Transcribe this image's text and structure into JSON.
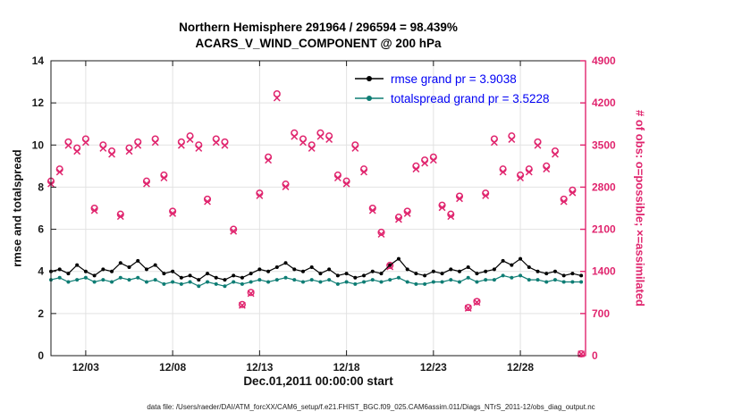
{
  "figure": {
    "title_line1": "Northern Hemisphere 291964 / 296594 = 98.439%",
    "title_line2": "ACARS_V_WIND_COMPONENT @ 200 hPa",
    "caption": "data file: /Users/raeder/DAI/ATM_forcXX/CAM6_setup/f.e21.FHIST_BGC.f09_025.CAM6assim.011/Diags_NTrS_2011-12/obs_diag_output.nc"
  },
  "legend": {
    "text_color": "#0000f5",
    "entries": [
      {
        "label": "rmse grand pr = 3.9038",
        "color": "#000000"
      },
      {
        "label": "totalspread grand pr = 3.5228",
        "color": "#0e7d74"
      }
    ]
  },
  "chart_data": {
    "type": "line",
    "title": "Northern Hemisphere 291964 / 296594 = 98.439%",
    "subtitle": "ACARS_V_WIND_COMPONENT @ 200 hPa",
    "xlabel": "Dec.01,2011 00:00:00 start",
    "ylabel_left": "rmse and totalspread",
    "ylabel_right": "# of obs: o=possible; ×=assimilated",
    "ylim_left": [
      0,
      14
    ],
    "yticks_left": [
      0,
      2,
      4,
      6,
      8,
      10,
      12,
      14
    ],
    "ylim_right": [
      0,
      4900
    ],
    "yticks_right": [
      0,
      700,
      1400,
      2100,
      2800,
      3500,
      4200,
      4900
    ],
    "xlim_days": [
      1,
      31.75
    ],
    "x_start_day": 1.0,
    "x_step_days": 0.5,
    "n_points": 62,
    "xticks": [
      {
        "day": 3,
        "label": "12/03"
      },
      {
        "day": 8,
        "label": "12/08"
      },
      {
        "day": 13,
        "label": "12/13"
      },
      {
        "day": 18,
        "label": "12/18"
      },
      {
        "day": 23,
        "label": "12/23"
      },
      {
        "day": 28,
        "label": "12/28"
      }
    ],
    "colors": {
      "axis": "#1a1a1a",
      "grid": "#e2e2e2",
      "obs": "#e0256e"
    },
    "series": [
      {
        "name": "rmse",
        "grand_mean": 3.9038,
        "color": "#000000",
        "values": [
          4.0,
          4.1,
          3.9,
          4.3,
          4.0,
          3.8,
          4.1,
          4.0,
          4.4,
          4.2,
          4.5,
          4.1,
          4.3,
          3.9,
          4.0,
          3.7,
          3.8,
          3.6,
          3.9,
          3.7,
          3.6,
          3.8,
          3.7,
          3.9,
          4.1,
          4.0,
          4.2,
          4.4,
          4.1,
          4.0,
          4.2,
          3.9,
          4.1,
          3.8,
          3.9,
          3.7,
          3.8,
          4.0,
          3.9,
          4.3,
          4.6,
          4.1,
          3.9,
          3.8,
          4.0,
          3.9,
          4.1,
          4.0,
          4.2,
          3.9,
          4.0,
          4.1,
          4.5,
          4.3,
          4.6,
          4.2,
          4.0,
          3.9,
          4.0,
          3.8,
          3.9,
          3.8
        ]
      },
      {
        "name": "totalspread",
        "grand_mean": 3.5228,
        "color": "#0e7d74",
        "values": [
          3.6,
          3.7,
          3.5,
          3.6,
          3.7,
          3.5,
          3.6,
          3.5,
          3.7,
          3.6,
          3.7,
          3.5,
          3.6,
          3.4,
          3.5,
          3.4,
          3.5,
          3.3,
          3.5,
          3.4,
          3.3,
          3.5,
          3.4,
          3.5,
          3.6,
          3.5,
          3.6,
          3.7,
          3.6,
          3.5,
          3.6,
          3.5,
          3.6,
          3.4,
          3.5,
          3.4,
          3.5,
          3.6,
          3.5,
          3.6,
          3.7,
          3.5,
          3.4,
          3.4,
          3.5,
          3.5,
          3.6,
          3.5,
          3.7,
          3.5,
          3.6,
          3.6,
          3.8,
          3.7,
          3.8,
          3.6,
          3.6,
          3.5,
          3.6,
          3.5,
          3.5,
          3.5
        ]
      }
    ],
    "obs": {
      "assimilated_ratio": 0.98439,
      "possible": [
        2900,
        3100,
        3550,
        3450,
        3600,
        2450,
        3500,
        3400,
        2350,
        3450,
        3550,
        2900,
        3600,
        3000,
        2400,
        3550,
        3650,
        3500,
        2600,
        3600,
        3550,
        2100,
        850,
        1050,
        2700,
        3300,
        4350,
        2850,
        3700,
        3600,
        3500,
        3700,
        3650,
        3000,
        2900,
        3500,
        3100,
        2450,
        2050,
        1500,
        2300,
        2400,
        3150,
        3250,
        3300,
        2500,
        2350,
        2650,
        800,
        900,
        2700,
        3600,
        3100,
        3650,
        3000,
        3100,
        3550,
        3150,
        3400,
        2600,
        2750,
        30
      ]
    }
  }
}
